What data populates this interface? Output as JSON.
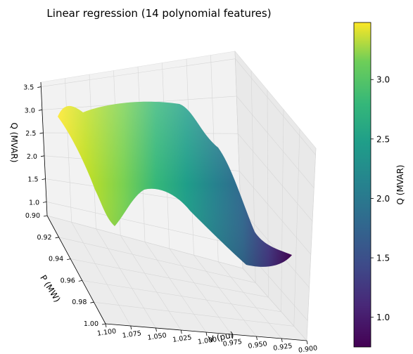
{
  "chart_data": {
    "type": "surface3d",
    "title": "Linear regression (14 polynomial features)",
    "xlabel": "V (pu)",
    "ylabel": "P (MW)",
    "zlabel": "Q (MVAR)",
    "x_ticks": [
      "0.900",
      "0.925",
      "0.950",
      "0.975",
      "1.000",
      "1.025",
      "1.050",
      "1.075",
      "1.100"
    ],
    "y_ticks": [
      "0.90",
      "0.92",
      "0.94",
      "0.96",
      "0.98",
      "1.00"
    ],
    "z_ticks": [
      "1.0",
      "1.5",
      "2.0",
      "2.5",
      "3.0",
      "3.5"
    ],
    "xlim": [
      0.9,
      1.1
    ],
    "ylim": [
      0.9,
      1.0
    ],
    "zlim": [
      0.7,
      3.6
    ],
    "colormap": "viridis",
    "colorbar": {
      "label": "Q (MVAR)",
      "range": [
        0.75,
        3.48
      ],
      "ticks": [
        "1.0",
        "1.5",
        "2.0",
        "2.5",
        "3.0"
      ]
    },
    "surface_edges": {
      "p_090": {
        "v": [
          1.1,
          1.075,
          1.05,
          1.025,
          1.0,
          0.975,
          0.95,
          0.925,
          0.9
        ],
        "q": [
          3.43,
          3.3,
          3.25,
          3.2,
          2.9,
          2.3,
          1.7,
          1.0,
          0.8
        ]
      },
      "p_100": {
        "v": [
          1.1,
          1.075,
          1.05,
          1.025,
          1.0,
          0.975,
          0.95,
          0.925,
          0.9
        ],
        "q": [
          3.48,
          2.9,
          2.0,
          1.2,
          1.15,
          1.1,
          0.85,
          0.75,
          0.78
        ]
      }
    }
  }
}
